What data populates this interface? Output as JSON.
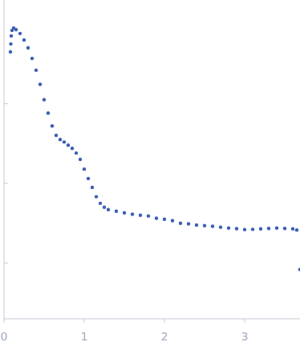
{
  "chart_data": {
    "type": "scatter",
    "color": "#3a5fb4",
    "marker": "circle",
    "log": "y",
    "tick_labels": "x",
    "x": [
      0.08,
      0.085,
      0.09,
      0.1,
      0.12,
      0.15,
      0.2,
      0.25,
      0.3,
      0.35,
      0.4,
      0.45,
      0.5,
      0.55,
      0.6,
      0.65,
      0.7,
      0.75,
      0.8,
      0.85,
      0.9,
      0.95,
      1.0,
      1.05,
      1.1,
      1.15,
      1.2,
      1.25,
      1.3,
      1.4,
      1.5,
      1.6,
      1.7,
      1.8,
      1.9,
      2.0,
      2.1,
      2.2,
      2.3,
      2.4,
      2.5,
      2.6,
      2.7,
      2.8,
      2.9,
      3.0,
      3.1,
      3.2,
      3.3,
      3.4,
      3.5,
      3.6,
      3.65,
      3.69
    ],
    "values": [
      4.47,
      5.62,
      7.08,
      8.32,
      8.91,
      8.5,
      7.59,
      6.3,
      5.01,
      3.7,
      2.63,
      1.75,
      1.12,
      0.76,
      0.525,
      0.4,
      0.355,
      0.33,
      0.302,
      0.275,
      0.24,
      0.2,
      0.151,
      0.115,
      0.0891,
      0.068,
      0.0562,
      0.0501,
      0.0468,
      0.0447,
      0.0427,
      0.041,
      0.0398,
      0.039,
      0.0365,
      0.0355,
      0.034,
      0.0316,
      0.031,
      0.03,
      0.0295,
      0.029,
      0.0282,
      0.0275,
      0.027,
      0.0263,
      0.0265,
      0.0269,
      0.0272,
      0.0275,
      0.0272,
      0.0269,
      0.026,
      0.0083
    ],
    "xlim": [
      0,
      3.69
    ],
    "ylim": [
      0.002,
      20
    ],
    "xticks": [
      0,
      1,
      2,
      3
    ],
    "yticks": [
      0.01,
      0.1,
      1
    ]
  }
}
